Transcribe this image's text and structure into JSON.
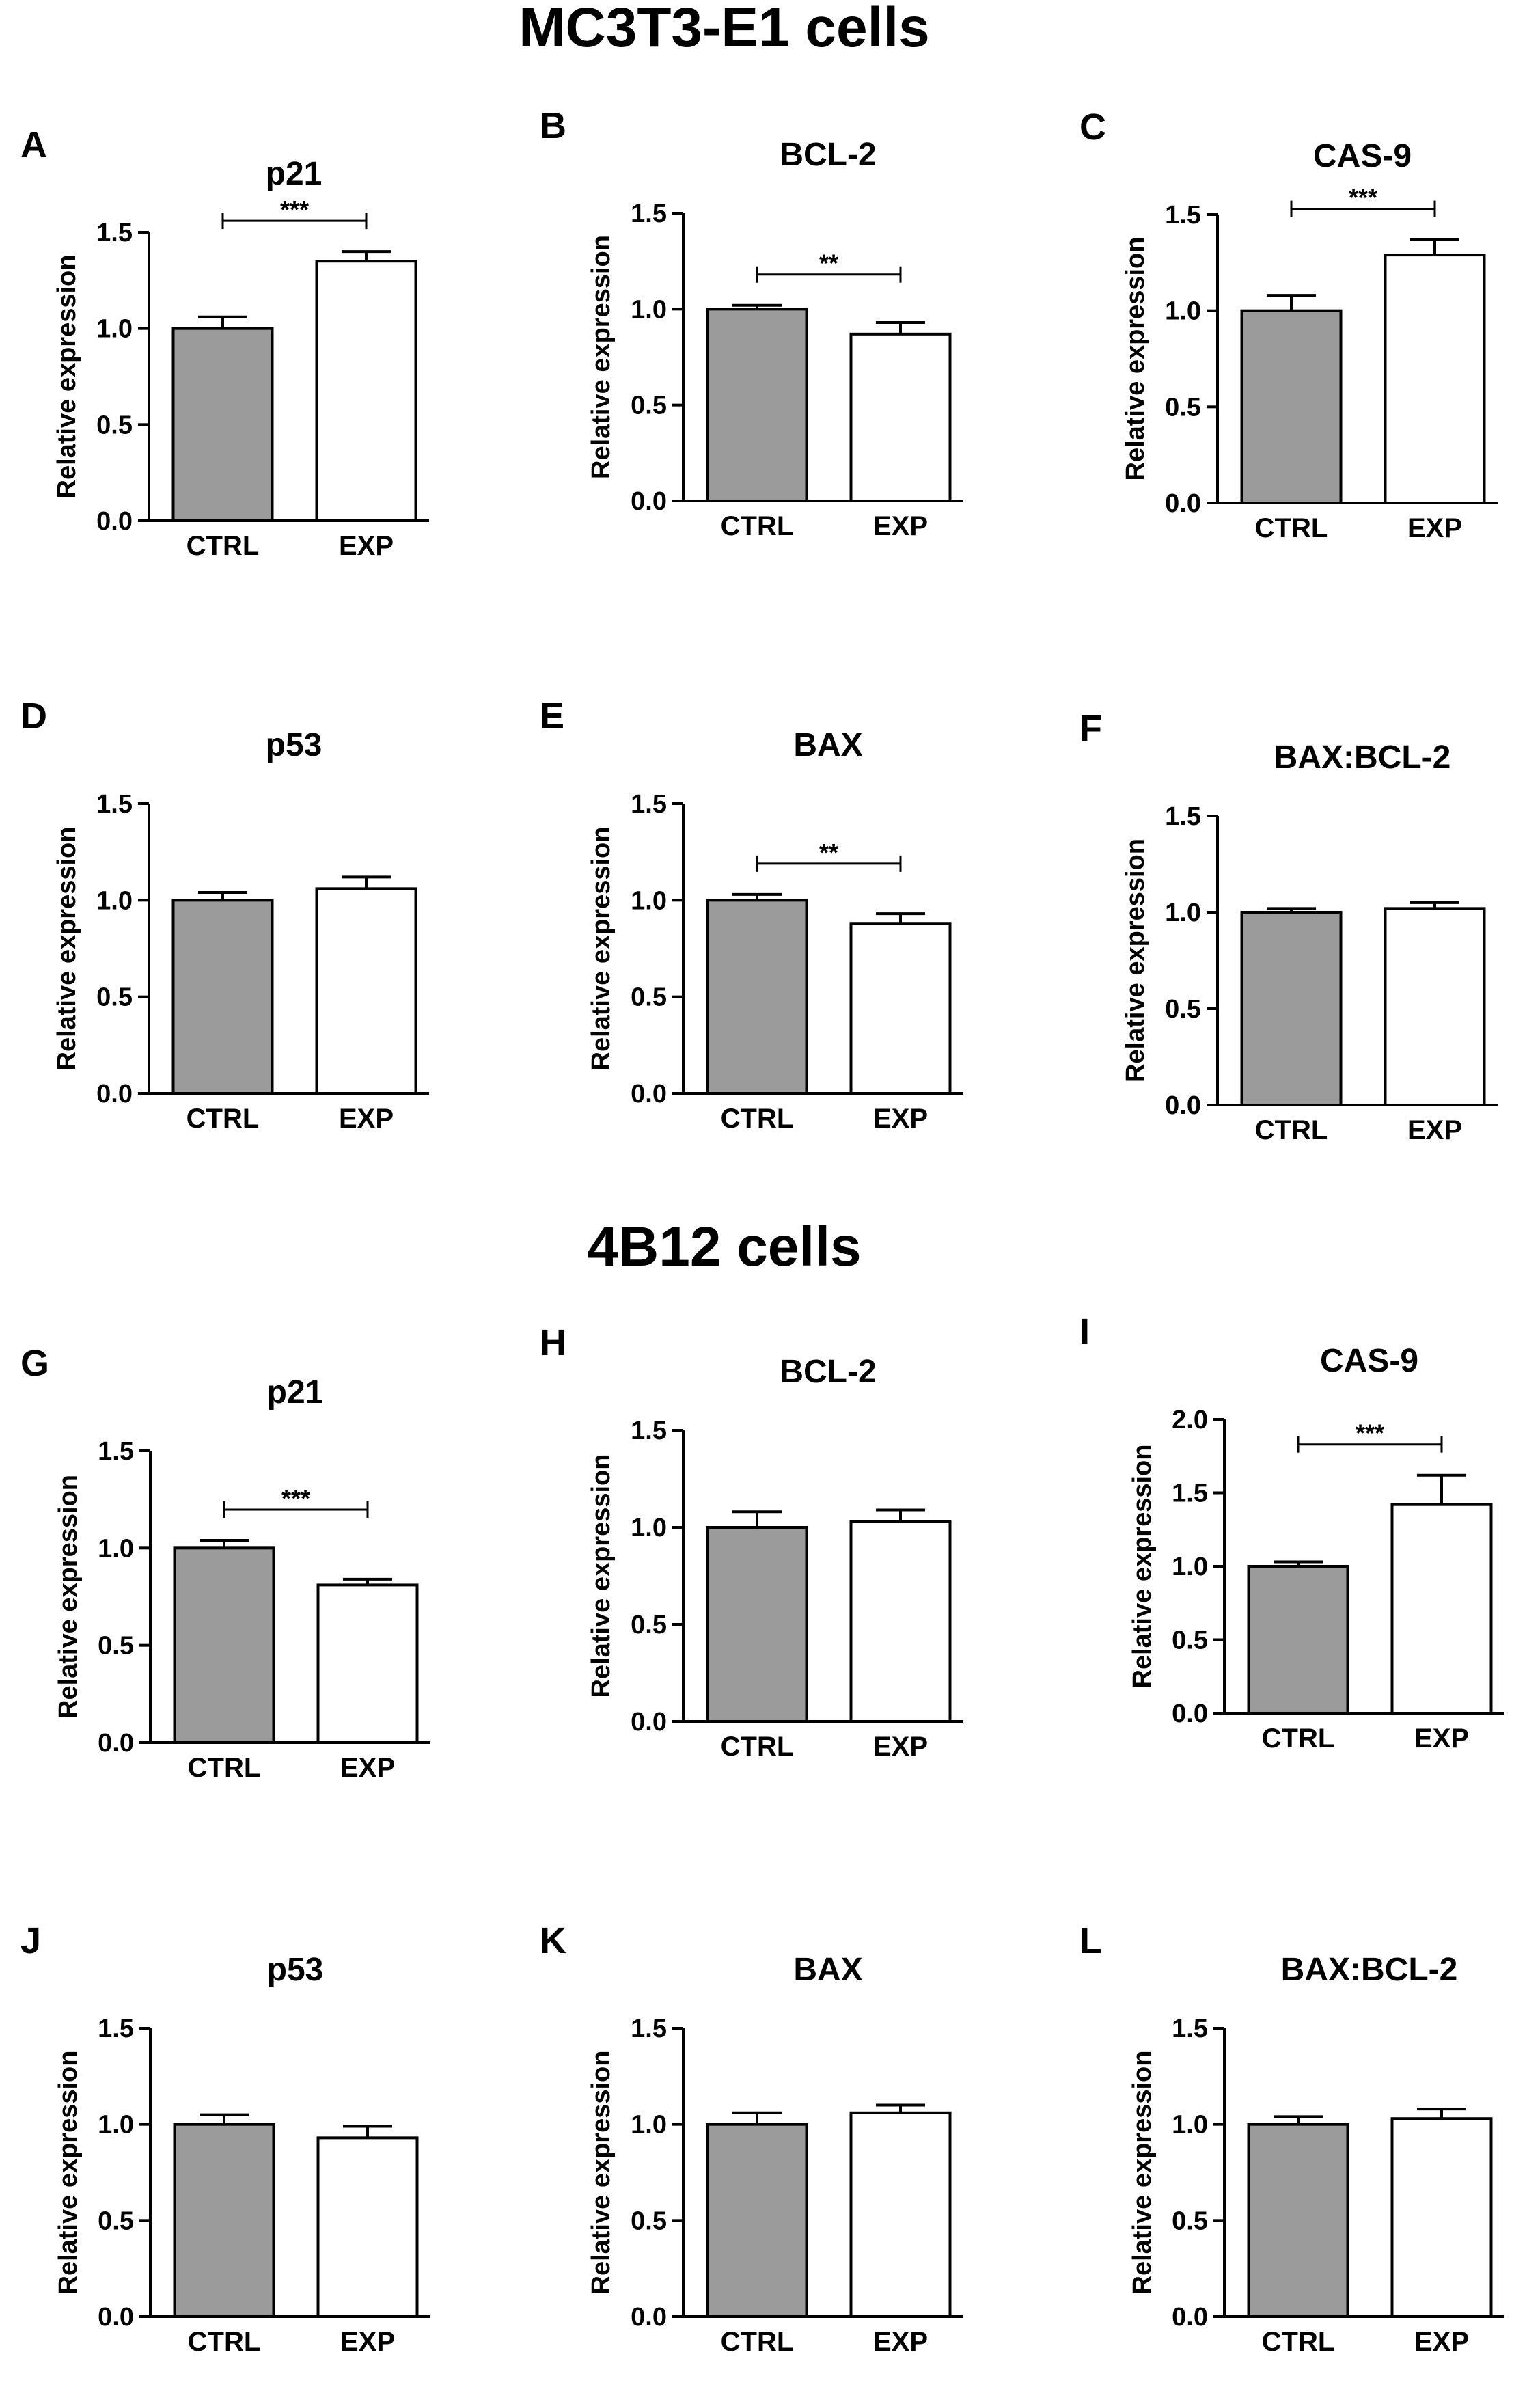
{
  "sections": [
    {
      "title": "MC3T3-E1 cells"
    },
    {
      "title": "4B12 cells"
    }
  ],
  "colors": {
    "ctrl": "#9b9b9b",
    "exp": "#ffffff",
    "stroke": "#000000"
  },
  "chart_data": [
    {
      "panel": "A",
      "type": "bar",
      "title": "p21",
      "ylabel": "Relative expression",
      "categories": [
        "CTRL",
        "EXP"
      ],
      "values": [
        1.0,
        1.35
      ],
      "errors": [
        0.06,
        0.05
      ],
      "ylim": [
        0,
        1.5
      ],
      "yticks": [
        "0.0",
        "0.5",
        "1.0",
        "1.5"
      ],
      "significance": "***"
    },
    {
      "panel": "B",
      "type": "bar",
      "title": "BCL-2",
      "ylabel": "Relative expression",
      "categories": [
        "CTRL",
        "EXP"
      ],
      "values": [
        1.0,
        0.87
      ],
      "errors": [
        0.02,
        0.06
      ],
      "ylim": [
        0,
        1.5
      ],
      "yticks": [
        "0.0",
        "0.5",
        "1.0",
        "1.5"
      ],
      "significance": "**"
    },
    {
      "panel": "C",
      "type": "bar",
      "title": "CAS-9",
      "ylabel": "Relative expression",
      "categories": [
        "CTRL",
        "EXP"
      ],
      "values": [
        1.0,
        1.29
      ],
      "errors": [
        0.08,
        0.08
      ],
      "ylim": [
        0,
        1.5
      ],
      "yticks": [
        "0.0",
        "0.5",
        "1.0",
        "1.5"
      ],
      "significance": "***"
    },
    {
      "panel": "D",
      "type": "bar",
      "title": "p53",
      "ylabel": "Relative expression",
      "categories": [
        "CTRL",
        "EXP"
      ],
      "values": [
        1.0,
        1.06
      ],
      "errors": [
        0.04,
        0.06
      ],
      "ylim": [
        0,
        1.5
      ],
      "yticks": [
        "0.0",
        "0.5",
        "1.0",
        "1.5"
      ],
      "significance": ""
    },
    {
      "panel": "E",
      "type": "bar",
      "title": "BAX",
      "ylabel": "Relative expression",
      "categories": [
        "CTRL",
        "EXP"
      ],
      "values": [
        1.0,
        0.88
      ],
      "errors": [
        0.03,
        0.05
      ],
      "ylim": [
        0,
        1.5
      ],
      "yticks": [
        "0.0",
        "0.5",
        "1.0",
        "1.5"
      ],
      "significance": "**"
    },
    {
      "panel": "F",
      "type": "bar",
      "title": "BAX:BCL-2",
      "ylabel": "Relative expression",
      "categories": [
        "CTRL",
        "EXP"
      ],
      "values": [
        1.0,
        1.02
      ],
      "errors": [
        0.02,
        0.03
      ],
      "ylim": [
        0,
        1.5
      ],
      "yticks": [
        "0.0",
        "0.5",
        "1.0",
        "1.5"
      ],
      "significance": ""
    },
    {
      "panel": "G",
      "type": "bar",
      "title": "p21",
      "ylabel": "Relative expression",
      "categories": [
        "CTRL",
        "EXP"
      ],
      "values": [
        1.0,
        0.81
      ],
      "errors": [
        0.04,
        0.03
      ],
      "ylim": [
        0,
        1.5
      ],
      "yticks": [
        "0.0",
        "0.5",
        "1.0",
        "1.5"
      ],
      "significance": "***"
    },
    {
      "panel": "H",
      "type": "bar",
      "title": "BCL-2",
      "ylabel": "Relative expression",
      "categories": [
        "CTRL",
        "EXP"
      ],
      "values": [
        1.0,
        1.03
      ],
      "errors": [
        0.08,
        0.06
      ],
      "ylim": [
        0,
        1.5
      ],
      "yticks": [
        "0.0",
        "0.5",
        "1.0",
        "1.5"
      ],
      "significance": ""
    },
    {
      "panel": "I",
      "type": "bar",
      "title": "CAS-9",
      "ylabel": "Relative expression",
      "categories": [
        "CTRL",
        "EXP"
      ],
      "values": [
        1.0,
        1.42
      ],
      "errors": [
        0.03,
        0.2
      ],
      "ylim": [
        0,
        2.0
      ],
      "yticks": [
        "0.0",
        "0.5",
        "1.0",
        "1.5",
        "2.0"
      ],
      "significance": "***"
    },
    {
      "panel": "J",
      "type": "bar",
      "title": "p53",
      "ylabel": "Relative expression",
      "categories": [
        "CTRL",
        "EXP"
      ],
      "values": [
        1.0,
        0.93
      ],
      "errors": [
        0.05,
        0.06
      ],
      "ylim": [
        0,
        1.5
      ],
      "yticks": [
        "0.0",
        "0.5",
        "1.0",
        "1.5"
      ],
      "significance": ""
    },
    {
      "panel": "K",
      "type": "bar",
      "title": "BAX",
      "ylabel": "Relative expression",
      "categories": [
        "CTRL",
        "EXP"
      ],
      "values": [
        1.0,
        1.06
      ],
      "errors": [
        0.06,
        0.04
      ],
      "ylim": [
        0,
        1.5
      ],
      "yticks": [
        "0.0",
        "0.5",
        "1.0",
        "1.5"
      ],
      "significance": ""
    },
    {
      "panel": "L",
      "type": "bar",
      "title": "BAX:BCL-2",
      "ylabel": "Relative expression",
      "categories": [
        "CTRL",
        "EXP"
      ],
      "values": [
        1.0,
        1.03
      ],
      "errors": [
        0.04,
        0.05
      ],
      "ylim": [
        0,
        1.5
      ],
      "yticks": [
        "0.0",
        "0.5",
        "1.0",
        "1.5"
      ],
      "significance": ""
    }
  ]
}
